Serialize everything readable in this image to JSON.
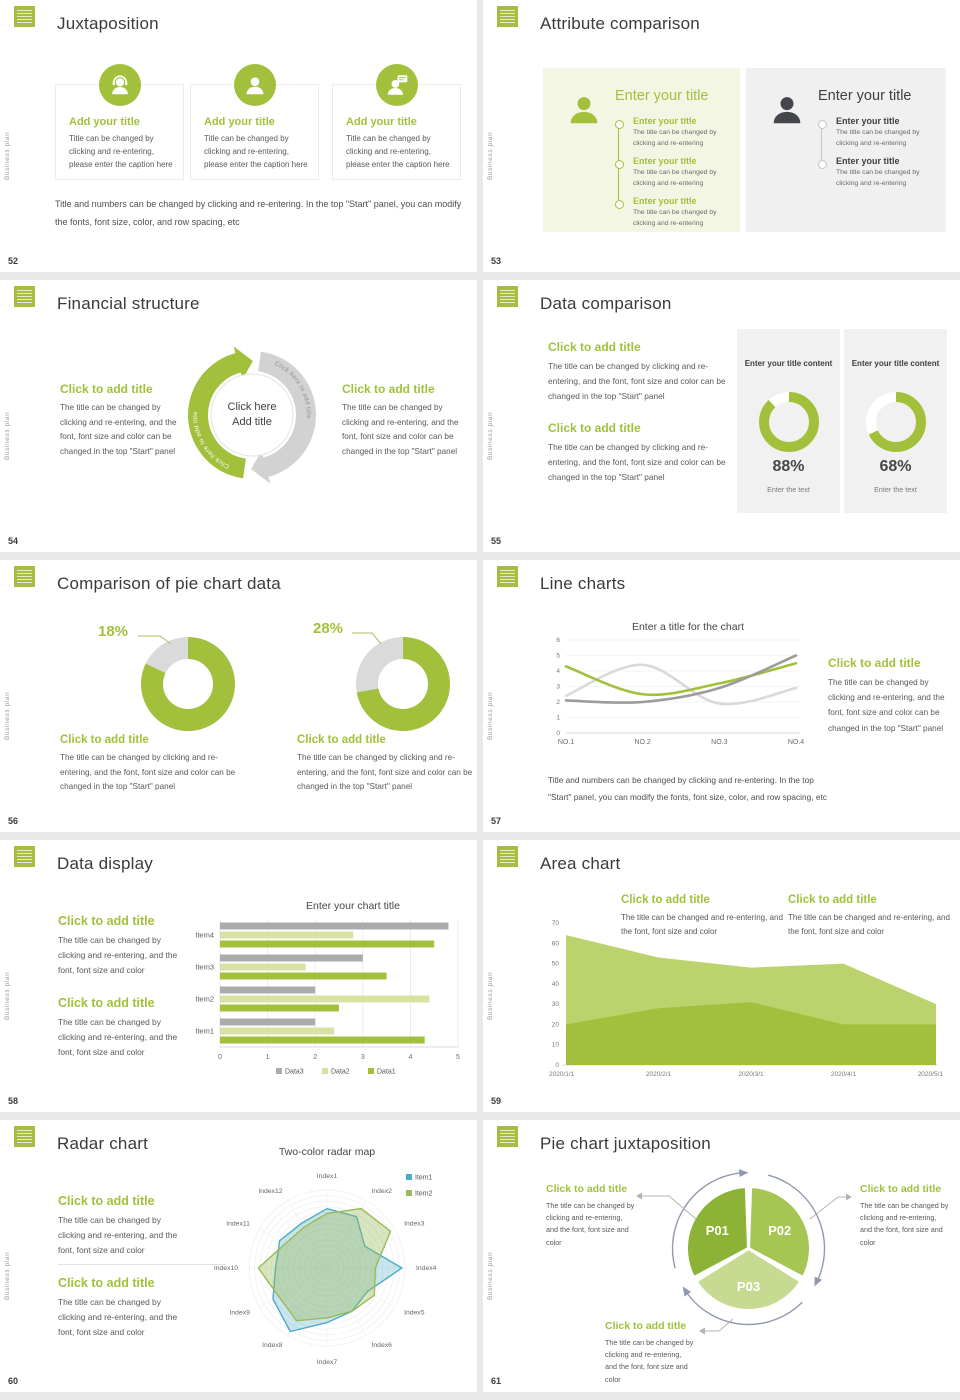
{
  "page": {
    "background": "#e9e9e9",
    "accent_green": "#a2c03c"
  },
  "brand": {
    "vertical_text": "Business plan"
  },
  "common": {
    "click_title": "Click to add title",
    "caption_panel": "The title can be changed by clicking and re-entering, and the font, font size and color can be changed in the top \"Start\" panel",
    "caption_font": "The title can be changed by clicking and re-entering, and the font, font size and color",
    "caption_font_short": "The title can be changed and re-entering, and the font, font size and color",
    "caption_small": "The title can be changed by clicking and re-entering",
    "caption_card": "Title can be changed by clicking and re-entering, please enter the caption here",
    "paragraph": "Title and numbers can be changed by clicking and re-entering. In the top \"Start\" panel, you can modify the fonts, font size, color, and row spacing, etc"
  },
  "slides": [
    {
      "num": "52",
      "title": "Juxtaposition",
      "cards": [
        {
          "title": "Add your title",
          "icon": "support-person-icon"
        },
        {
          "title": "Add your title",
          "icon": "person-icon"
        },
        {
          "title": "Add your title",
          "icon": "person-chat-icon"
        }
      ]
    },
    {
      "num": "53",
      "title": "Attribute comparison",
      "left": {
        "heading": "Enter your title",
        "items": [
          {
            "title": "Enter your title"
          },
          {
            "title": "Enter your title"
          },
          {
            "title": "Enter your title"
          }
        ]
      },
      "right": {
        "heading": "Enter your title",
        "items": [
          {
            "title": "Enter your title"
          },
          {
            "title": "Enter your title"
          }
        ]
      }
    },
    {
      "num": "54",
      "title": "Financial structure",
      "center_line1": "Click here",
      "center_line2": "Add title",
      "arrow_text": "Click here to add title"
    },
    {
      "num": "55",
      "title": "Data comparison",
      "cards": [
        {
          "title": "Enter your title content",
          "value": "88%",
          "caption": "Enter the text"
        },
        {
          "title": "Enter your title content",
          "value": "68%",
          "caption": "Enter the text"
        }
      ]
    },
    {
      "num": "56",
      "title": "Comparison of pie chart data"
    },
    {
      "num": "57",
      "title": "Line charts"
    },
    {
      "num": "58",
      "title": "Data display"
    },
    {
      "num": "59",
      "title": "Area chart"
    },
    {
      "num": "60",
      "title": "Radar chart"
    },
    {
      "num": "61",
      "title": "Pie chart juxtaposition"
    }
  ],
  "chart_data": [
    {
      "id": "donut-55-left",
      "type": "donut",
      "value": 88,
      "label": "Enter your title content",
      "caption": "Enter the text",
      "color": "#a2c03c",
      "track": "#ffffff"
    },
    {
      "id": "donut-55-right",
      "type": "donut",
      "value": 68,
      "label": "Enter your title content",
      "caption": "Enter the text",
      "color": "#a2c03c",
      "track": "#ffffff"
    },
    {
      "id": "donut-56-left",
      "type": "donut",
      "label": "18%",
      "gray_value": 18,
      "green_value": 82,
      "color": "#a2c03c",
      "track": "#dadada"
    },
    {
      "id": "donut-56-right",
      "type": "donut",
      "label": "28%",
      "gray_value": 28,
      "green_value": 72,
      "color": "#a2c03c",
      "track": "#dadada"
    },
    {
      "id": "line-57",
      "type": "line",
      "title": "Enter a title for the chart",
      "categories": [
        "NO.1",
        "NO.2",
        "NO.3",
        "NO.4"
      ],
      "ylim": [
        0,
        6
      ],
      "yticks": [
        0,
        1,
        2,
        3,
        4,
        5,
        6
      ],
      "series": [
        {
          "name": "series-light-gray",
          "color": "#d9d9d9",
          "values": [
            2.4,
            4.4,
            1.9,
            2.9
          ]
        },
        {
          "name": "series-green",
          "color": "#a2c03c",
          "values": [
            4.3,
            2.5,
            3.2,
            4.5
          ]
        },
        {
          "name": "series-dark-gray",
          "color": "#9c9c9c",
          "values": [
            2.1,
            2.0,
            2.9,
            5.0
          ]
        }
      ]
    },
    {
      "id": "bar-58",
      "type": "bar",
      "orientation": "horizontal",
      "title": "Enter your chart title",
      "categories": [
        "Item1",
        "Item2",
        "Item3",
        "Item4"
      ],
      "xlim": [
        0,
        5
      ],
      "xticks": [
        0,
        1,
        2,
        3,
        4,
        5
      ],
      "series": [
        {
          "name": "Data3",
          "color": "#ababab",
          "values": [
            2.0,
            2.0,
            3.0,
            4.8
          ]
        },
        {
          "name": "Data2",
          "color": "#d6e3a3",
          "values": [
            2.4,
            4.4,
            1.8,
            2.8
          ]
        },
        {
          "name": "Data1",
          "color": "#a2c03c",
          "values": [
            4.3,
            2.5,
            3.5,
            4.5
          ]
        }
      ],
      "legend": [
        "Data3",
        "Data2",
        "Data1"
      ]
    },
    {
      "id": "area-59",
      "type": "area",
      "categories": [
        "2020/1/1",
        "2020/2/1",
        "2020/3/1",
        "2020/4/1",
        "2020/5/1"
      ],
      "ylim": [
        0,
        70
      ],
      "yticks": [
        0,
        10,
        20,
        30,
        40,
        50,
        60,
        70
      ],
      "series": [
        {
          "name": "series-light",
          "color": "#bcd36d",
          "values": [
            64,
            53,
            48,
            50,
            30
          ]
        },
        {
          "name": "series-dark",
          "color": "#a2c03d",
          "values": [
            20,
            28,
            31,
            20,
            20
          ]
        }
      ]
    },
    {
      "id": "radar-60",
      "type": "radar",
      "title": "Two-color radar map",
      "max": 10,
      "categories": [
        "Index1",
        "Index2",
        "Index3",
        "Index4",
        "Index5",
        "Index6",
        "Index7",
        "Index8",
        "Index9",
        "Index10",
        "Index11",
        "Index12"
      ],
      "series": [
        {
          "name": "Item1",
          "color": "#4bacc6",
          "fill": "rgba(75,172,198,0.30)",
          "values": [
            7.6,
            7.6,
            5.6,
            9.6,
            6.0,
            6.4,
            7.0,
            9.4,
            8.0,
            6.6,
            7.0,
            6.6
          ]
        },
        {
          "name": "Item2",
          "color": "#9bbb59",
          "fill": "rgba(155,187,89,0.38)",
          "values": [
            7.0,
            8.8,
            9.4,
            6.2,
            7.0,
            6.4,
            6.4,
            7.8,
            7.2,
            8.8,
            6.2,
            6.0
          ]
        }
      ]
    },
    {
      "id": "pie-61",
      "type": "pie",
      "labels": [
        "P01",
        "P02",
        "P03"
      ],
      "values": [
        33.3,
        33.3,
        33.3
      ],
      "colors": [
        "#8cb236",
        "#a6c654",
        "#c6da92"
      ]
    }
  ]
}
